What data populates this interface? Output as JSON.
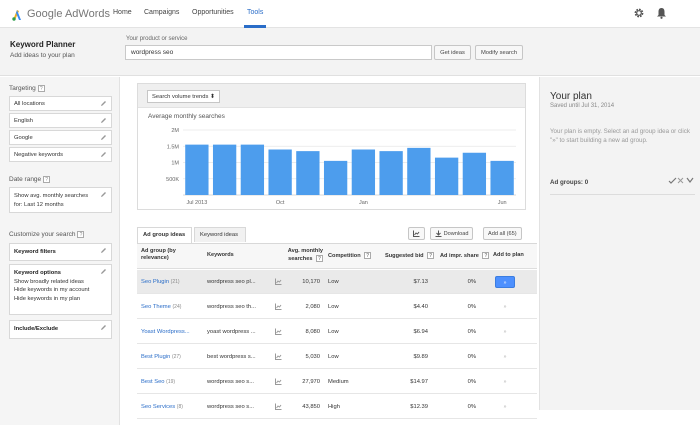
{
  "app": {
    "logo_text_a": "Google",
    "logo_text_b": "AdWords",
    "nav_tabs": [
      {
        "label": "Home",
        "active": false
      },
      {
        "label": "Campaigns",
        "active": false
      },
      {
        "label": "Opportunities",
        "active": false
      },
      {
        "label": "Tools",
        "active": true
      }
    ],
    "accent_color": "#2a6dc8"
  },
  "header": {
    "title": "Keyword Planner",
    "subtitle": "Add ideas to your plan",
    "product_label": "Your product or service",
    "product_value": "wordpress seo",
    "get_ideas": "Get ideas",
    "modify_search": "Modify search"
  },
  "sidebar": {
    "targeting_label": "Targeting",
    "targeting": [
      "All locations",
      "English",
      "Google",
      "Negative keywords"
    ],
    "date_range_label": "Date range",
    "date_range_line1": "Show avg. monthly searches",
    "date_range_line2": "for: Last 12 months",
    "customize_label": "Customize your search",
    "keyword_filters": "Keyword filters",
    "keyword_options_title": "Keyword options",
    "keyword_options": [
      "Show broadly related ideas",
      "Hide keywords in my account",
      "Hide keywords in my plan"
    ],
    "include_exclude": "Include/Exclude",
    "help_glyph": "?"
  },
  "chart": {
    "dropdown": "Search volume trends",
    "title": "Average monthly searches",
    "bar_color": "#4d9ded"
  },
  "chart_data": {
    "type": "bar",
    "title": "Average monthly searches",
    "categories": [
      "Jul 2013",
      "",
      "",
      "Oct",
      "",
      "",
      "Jan",
      "",
      "",
      "",
      "",
      "Jun 2014"
    ],
    "tick_labels": [
      {
        "label": "Jul 2013",
        "index": 0
      },
      {
        "label": "Oct",
        "index": 3
      },
      {
        "label": "Jan",
        "index": 6
      },
      {
        "label": "Jun",
        "index": 11
      }
    ],
    "values": [
      1550000,
      1550000,
      1550000,
      1400000,
      1350000,
      1050000,
      1400000,
      1350000,
      1450000,
      1150000,
      1300000,
      1050000
    ],
    "y_ticks": [
      {
        "label": "2M",
        "value": 2000000
      },
      {
        "label": "1.5M",
        "value": 1500000
      },
      {
        "label": "1M",
        "value": 1000000
      },
      {
        "label": "500K",
        "value": 500000
      }
    ],
    "ylim": [
      0,
      2000000
    ],
    "grid": true
  },
  "ideas": {
    "tab_groups": "Ad group ideas",
    "tab_keywords": "Keyword ideas",
    "chart_icon": "chart-icon",
    "download": "Download",
    "add_all": "Add all (65)"
  },
  "table": {
    "headers": {
      "ad_group_a": "Ad group (by",
      "ad_group_b": "relevance)",
      "keywords": "Keywords",
      "avg_a": "Avg. monthly",
      "avg_b": "searches",
      "competition": "Competition",
      "bid": "Suggested bid",
      "share": "Ad impr. share",
      "add": "Add to plan"
    },
    "help_glyph": "?",
    "add_glyph": "»",
    "rows": [
      {
        "group": "Seo Plugin",
        "count": "(21)",
        "keywords": "wordpress seo pl...",
        "searches": "10,170",
        "competition": "Low",
        "bid": "$7.13",
        "share": "0%",
        "highlight": true
      },
      {
        "group": "Seo Theme",
        "count": "(24)",
        "keywords": "wordpress seo th...",
        "searches": "2,080",
        "competition": "Low",
        "bid": "$4.40",
        "share": "0%",
        "highlight": false
      },
      {
        "group": "Yoast Wordpress...",
        "count": "",
        "keywords": "yoast wordpress ...",
        "searches": "8,080",
        "competition": "Low",
        "bid": "$6.94",
        "share": "0%",
        "highlight": false
      },
      {
        "group": "Best Plugin",
        "count": "(27)",
        "keywords": "best wordpress s...",
        "searches": "5,030",
        "competition": "Low",
        "bid": "$9.89",
        "share": "0%",
        "highlight": false
      },
      {
        "group": "Best Seo",
        "count": "(19)",
        "keywords": "wordpress seo s...",
        "searches": "27,970",
        "competition": "Medium",
        "bid": "$14.97",
        "share": "0%",
        "highlight": false
      },
      {
        "group": "Seo Services",
        "count": "(8)",
        "keywords": "wordpress seo s...",
        "searches": "43,850",
        "competition": "High",
        "bid": "$12.39",
        "share": "0%",
        "highlight": false
      }
    ]
  },
  "plan": {
    "title": "Your plan",
    "saved": "Saved until Jul 31, 2014",
    "empty_text": "Your plan is empty. Select an ad group idea or click \"»\" to start building a new ad group.",
    "groups_label": "Ad groups:",
    "groups_count": "0"
  }
}
